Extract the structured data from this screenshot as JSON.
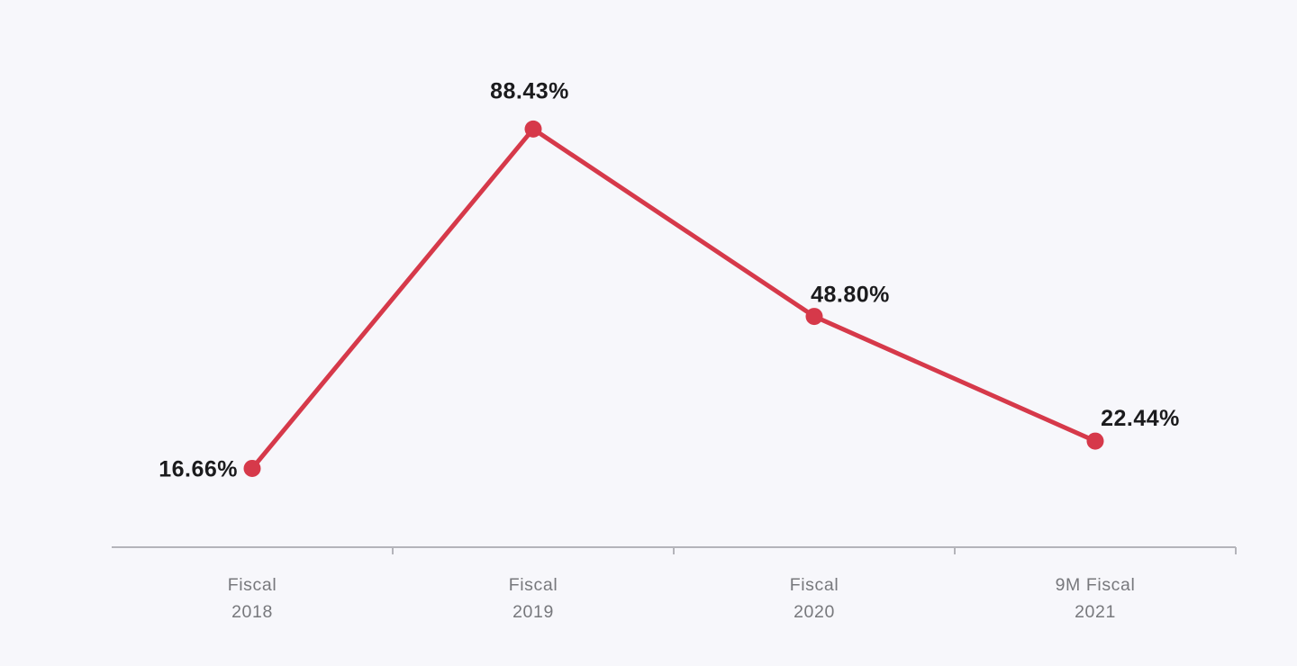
{
  "page": {
    "background": "#f7f7fb"
  },
  "chart_data": {
    "type": "line",
    "categories": [
      "Fiscal 2018",
      "Fiscal 2019",
      "Fiscal 2020",
      "9M Fiscal 2021"
    ],
    "values": [
      16.66,
      88.43,
      48.8,
      22.44
    ],
    "point_labels": [
      "16.66%",
      "88.43%",
      "48.80%",
      "22.44%"
    ],
    "ylim": [
      0,
      110
    ],
    "grid": false,
    "legend": "none",
    "colors": {
      "line": "#d6394a",
      "point": "#d6394a",
      "value_label": "#1b1b1d",
      "axis_line": "#b4b4ba",
      "axis_label": "#77787c",
      "background": "#f7f7fb"
    }
  }
}
